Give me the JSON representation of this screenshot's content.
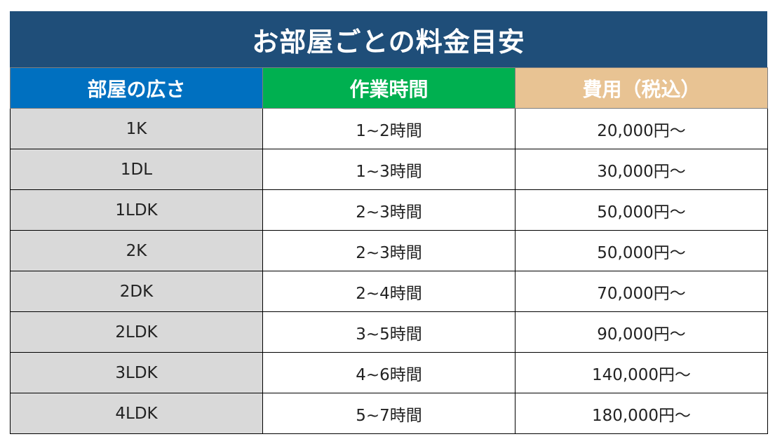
{
  "title": "お部屋ごとの料金目安",
  "headers": [
    "部屋の広さ",
    "作業時間",
    "費用（税込）"
  ],
  "rows": [
    {
      "size": "1K",
      "time": "1~2時間",
      "price": "20,000円～"
    },
    {
      "size": "1DL",
      "time": "1~3時間",
      "price": "30,000円～"
    },
    {
      "size": "1LDK",
      "time": "2~3時間",
      "price": "50,000円～"
    },
    {
      "size": "2K",
      "time": "2~3時間",
      "price": "50,000円～"
    },
    {
      "size": "2DK",
      "time": "2~4時間",
      "price": "70,000円～"
    },
    {
      "size": "2LDK",
      "time": "3~5時間",
      "price": "90,000円～"
    },
    {
      "size": "3LDK",
      "time": "4~6時間",
      "price": "140,000円～"
    },
    {
      "size": "4LDK",
      "time": "5~7時間",
      "price": "180,000円～"
    }
  ],
  "colors": {
    "title_bg": "#1f4e79",
    "header_size_bg": "#0070c0",
    "header_time_bg": "#00b050",
    "header_price_bg": "#e8c393",
    "size_cell_bg": "#d9d9d9"
  }
}
